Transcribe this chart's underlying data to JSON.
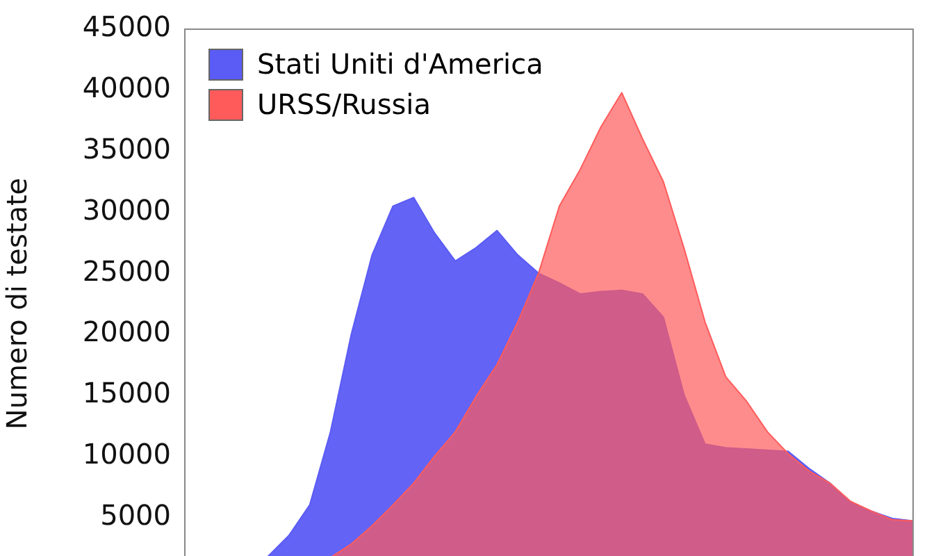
{
  "chart_data": {
    "type": "area",
    "ylabel": "Numero di testate",
    "categories": [
      null,
      null,
      null,
      null,
      null,
      null,
      null,
      null,
      null,
      null,
      null,
      null,
      null,
      null,
      null,
      null,
      null,
      null,
      null,
      null,
      null,
      null,
      null,
      null,
      null,
      null,
      null,
      null,
      null,
      null,
      null,
      null,
      null,
      null,
      null,
      null
    ],
    "series": [
      {
        "name": "Stati Uniti d'America",
        "color": "#5b5bf5",
        "values": [
          0,
          0,
          200,
          1000,
          1800,
          3500,
          6000,
          12000,
          20000,
          26500,
          30500,
          31200,
          28300,
          26000,
          27100,
          28500,
          26500,
          25000,
          24200,
          23300,
          23500,
          23600,
          23300,
          21400,
          15000,
          11000,
          10700,
          10600,
          10500,
          10400,
          9000,
          7800,
          6200,
          5500,
          4900,
          4700
        ]
      },
      {
        "name": "URSS/Russia",
        "color": "#ff5b5b",
        "values": [
          0,
          0,
          0,
          100,
          300,
          600,
          1000,
          1700,
          2800,
          4300,
          6000,
          7800,
          10000,
          12000,
          14900,
          17500,
          21000,
          25000,
          30500,
          33500,
          37000,
          39800,
          36000,
          32500,
          27000,
          21000,
          16500,
          14500,
          12000,
          10200,
          8800,
          7800,
          6300,
          5500,
          4800,
          4700
        ]
      }
    ],
    "ylim": [
      0,
      45000
    ],
    "yticks": [
      5000,
      10000,
      15000,
      20000,
      25000,
      30000,
      35000,
      40000,
      45000
    ],
    "tick_labels": "y",
    "grid": false,
    "legend": "top left"
  }
}
